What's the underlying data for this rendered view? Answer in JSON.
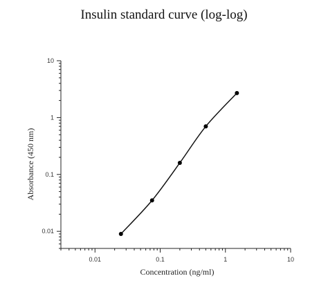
{
  "chart_data": {
    "type": "scatter",
    "title": "Insulin standard curve (log-log)",
    "xlabel": "Concentration (ng/ml)",
    "ylabel": "Absorbance (450 nm)",
    "x_scale": "log",
    "y_scale": "log",
    "xlim": [
      0.003,
      10
    ],
    "ylim": [
      0.005,
      10
    ],
    "x_ticks": [
      0.01,
      0.1,
      1,
      10
    ],
    "x_tick_labels": [
      "0.01",
      "0.1",
      "1",
      "10"
    ],
    "y_ticks": [
      0.01,
      0.1,
      1,
      10
    ],
    "y_tick_labels": [
      "0.01",
      "0.1",
      "1",
      "10"
    ],
    "grid": false,
    "series": [
      {
        "x": [
          0.025,
          0.075,
          0.2,
          0.5,
          1.5
        ],
        "y": [
          0.009,
          0.035,
          0.16,
          0.7,
          2.7
        ]
      }
    ],
    "fit_curve": true
  }
}
